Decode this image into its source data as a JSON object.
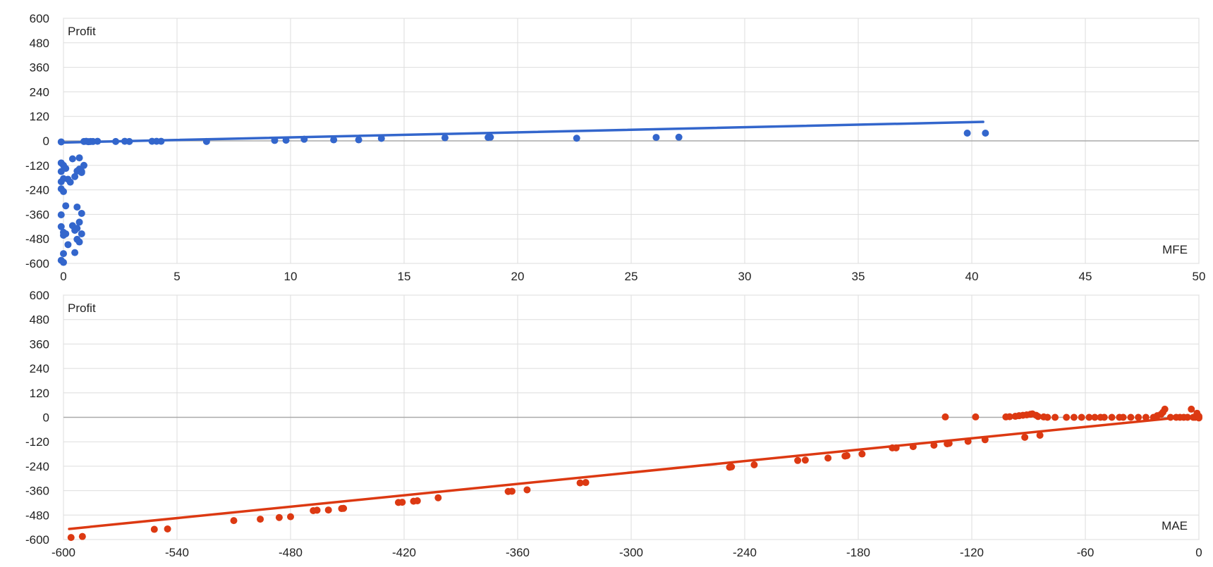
{
  "chart_data": [
    {
      "type": "scatter",
      "name": "mfe-chart",
      "color": "#3366cc",
      "ylabel": "Profit",
      "xlabel": "MFE",
      "xlim": [
        0,
        50
      ],
      "ylim": [
        -600,
        600
      ],
      "xticks": [
        "0",
        "5",
        "10",
        "15",
        "20",
        "25",
        "30",
        "35",
        "40",
        "45",
        "50"
      ],
      "yticks": [
        "600",
        "480",
        "360",
        "240",
        "120",
        "0",
        "-120",
        "-240",
        "-360",
        "-480",
        "-600"
      ],
      "grid": true,
      "trendline": {
        "x": [
          0,
          40.5
        ],
        "y": [
          -8,
          93
        ]
      },
      "points": [
        [
          -0.1,
          -5
        ],
        [
          0.9,
          -3
        ],
        [
          1.0,
          -2
        ],
        [
          1.1,
          -4
        ],
        [
          1.2,
          -3
        ],
        [
          1.3,
          -3
        ],
        [
          1.5,
          -2
        ],
        [
          2.3,
          -3
        ],
        [
          2.7,
          -2
        ],
        [
          2.9,
          -3
        ],
        [
          3.9,
          -2
        ],
        [
          4.1,
          -2
        ],
        [
          4.3,
          -2
        ],
        [
          6.3,
          -3
        ],
        [
          9.3,
          2
        ],
        [
          9.8,
          3
        ],
        [
          10.6,
          8
        ],
        [
          11.9,
          5
        ],
        [
          13.0,
          5
        ],
        [
          14.0,
          12
        ],
        [
          16.8,
          15
        ],
        [
          18.7,
          17
        ],
        [
          18.8,
          18
        ],
        [
          22.6,
          13
        ],
        [
          26.1,
          17
        ],
        [
          27.1,
          18
        ],
        [
          39.8,
          38
        ],
        [
          40.6,
          38
        ],
        [
          -0.1,
          -108
        ],
        [
          0.0,
          -120
        ],
        [
          0.1,
          -135
        ],
        [
          -0.1,
          -150
        ],
        [
          0.0,
          -185
        ],
        [
          -0.1,
          -200
        ],
        [
          0.2,
          -188
        ],
        [
          -0.1,
          -235
        ],
        [
          0.0,
          -248
        ],
        [
          0.3,
          -202
        ],
        [
          0.5,
          -175
        ],
        [
          0.6,
          -148
        ],
        [
          0.7,
          -138
        ],
        [
          0.8,
          -150
        ],
        [
          0.9,
          -120
        ],
        [
          0.8,
          -155
        ],
        [
          0.4,
          -88
        ],
        [
          0.7,
          -83
        ],
        [
          0.1,
          -318
        ],
        [
          0.6,
          -324
        ],
        [
          -0.1,
          -362
        ],
        [
          0.8,
          -355
        ],
        [
          -0.1,
          -420
        ],
        [
          0.4,
          -415
        ],
        [
          0.7,
          -398
        ],
        [
          0.5,
          -438
        ],
        [
          0.6,
          -428
        ],
        [
          0.0,
          -448
        ],
        [
          0.0,
          -462
        ],
        [
          0.1,
          -455
        ],
        [
          0.8,
          -455
        ],
        [
          0.6,
          -482
        ],
        [
          0.7,
          -495
        ],
        [
          0.2,
          -508
        ],
        [
          0.5,
          -547
        ],
        [
          0.0,
          -552
        ],
        [
          -0.1,
          -585
        ],
        [
          0.0,
          -595
        ]
      ]
    },
    {
      "type": "scatter",
      "name": "mae-chart",
      "color": "#dc3912",
      "ylabel": "Profit",
      "xlabel": "MAE",
      "xlim": [
        -600,
        0
      ],
      "ylim": [
        -600,
        600
      ],
      "xticks": [
        "-600",
        "-540",
        "-480",
        "-420",
        "-360",
        "-300",
        "-240",
        "-180",
        "-120",
        "-60",
        "0"
      ],
      "yticks": [
        "600",
        "480",
        "360",
        "240",
        "120",
        "0",
        "-120",
        "-240",
        "-360",
        "-480",
        "-600"
      ],
      "grid": true,
      "trendline": {
        "x": [
          -597,
          -15
        ],
        "y": [
          -548,
          -5
        ]
      },
      "points": [
        [
          -596,
          -590
        ],
        [
          -590,
          -585
        ],
        [
          -552,
          -550
        ],
        [
          -545,
          -548
        ],
        [
          -510,
          -507
        ],
        [
          -496,
          -500
        ],
        [
          -486,
          -492
        ],
        [
          -480,
          -488
        ],
        [
          -468,
          -458
        ],
        [
          -466,
          -456
        ],
        [
          -460,
          -455
        ],
        [
          -453,
          -448
        ],
        [
          -452,
          -447
        ],
        [
          -423,
          -418
        ],
        [
          -421,
          -417
        ],
        [
          -415,
          -412
        ],
        [
          -413,
          -410
        ],
        [
          -402,
          -395
        ],
        [
          -365,
          -364
        ],
        [
          -363,
          -363
        ],
        [
          -355,
          -356
        ],
        [
          -327,
          -322
        ],
        [
          -324,
          -320
        ],
        [
          -248,
          -245
        ],
        [
          -247,
          -243
        ],
        [
          -235,
          -233
        ],
        [
          -212,
          -212
        ],
        [
          -208,
          -210
        ],
        [
          -196,
          -200
        ],
        [
          -187,
          -190
        ],
        [
          -186,
          -188
        ],
        [
          -178,
          -180
        ],
        [
          -162,
          -150
        ],
        [
          -160,
          -150
        ],
        [
          -151,
          -144
        ],
        [
          -140,
          -137
        ],
        [
          -133,
          -130
        ],
        [
          -132,
          -128
        ],
        [
          -122,
          -118
        ],
        [
          -113,
          -110
        ],
        [
          -92,
          -98
        ],
        [
          -84,
          -88
        ],
        [
          -134,
          2
        ],
        [
          -118,
          2
        ],
        [
          -102,
          2
        ],
        [
          -100,
          3
        ],
        [
          -97,
          5
        ],
        [
          -95,
          8
        ],
        [
          -93,
          10
        ],
        [
          -91,
          12
        ],
        [
          -89,
          15
        ],
        [
          -88,
          17
        ],
        [
          -86,
          10
        ],
        [
          -85,
          4
        ],
        [
          -82,
          2
        ],
        [
          -80,
          0
        ],
        [
          -76,
          0
        ],
        [
          -70,
          0
        ],
        [
          -66,
          0
        ],
        [
          -62,
          0
        ],
        [
          -58,
          0
        ],
        [
          -55,
          0
        ],
        [
          -52,
          0
        ],
        [
          -50,
          0
        ],
        [
          -46,
          0
        ],
        [
          -42,
          0
        ],
        [
          -40,
          0
        ],
        [
          -36,
          0
        ],
        [
          -32,
          0
        ],
        [
          -28,
          0
        ],
        [
          -24,
          0
        ],
        [
          -22,
          8
        ],
        [
          -20,
          15
        ],
        [
          -19,
          25
        ],
        [
          -18,
          40
        ],
        [
          -15,
          0
        ],
        [
          -12,
          0
        ],
        [
          -10,
          0
        ],
        [
          -8,
          0
        ],
        [
          -6,
          0
        ],
        [
          -4,
          40
        ],
        [
          -3,
          0
        ],
        [
          -2,
          0
        ],
        [
          -1,
          20
        ],
        [
          0,
          0
        ],
        [
          0,
          5
        ],
        [
          0,
          -3
        ]
      ]
    }
  ]
}
